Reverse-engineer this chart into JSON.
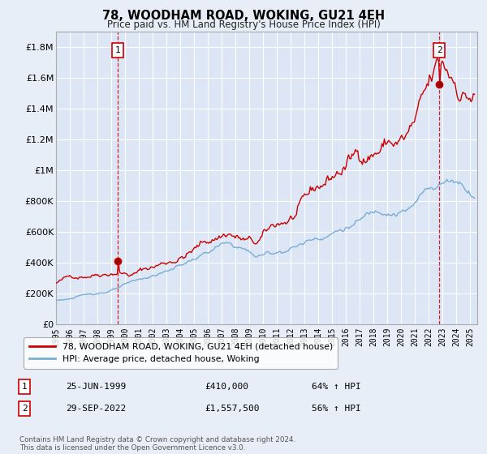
{
  "title": "78, WOODHAM ROAD, WOKING, GU21 4EH",
  "subtitle": "Price paid vs. HM Land Registry's House Price Index (HPI)",
  "background_color": "#e8eef7",
  "plot_bg_color": "#dce6f5",
  "ylim": [
    0,
    1900000
  ],
  "yticks": [
    0,
    200000,
    400000,
    600000,
    800000,
    1000000,
    1200000,
    1400000,
    1600000,
    1800000
  ],
  "ytick_labels": [
    "£0",
    "£200K",
    "£400K",
    "£600K",
    "£800K",
    "£1M",
    "£1.2M",
    "£1.4M",
    "£1.6M",
    "£1.8M"
  ],
  "marker1": {
    "year": 1999.48,
    "price": 410000,
    "label": "1",
    "date": "25-JUN-1999",
    "price_str": "£410,000",
    "pct": "64% ↑ HPI"
  },
  "marker2": {
    "year": 2022.75,
    "price": 1557500,
    "label": "2",
    "date": "29-SEP-2022",
    "price_str": "£1,557,500",
    "pct": "56% ↑ HPI"
  },
  "legend_red": "78, WOODHAM ROAD, WOKING, GU21 4EH (detached house)",
  "legend_blue": "HPI: Average price, detached house, Woking",
  "footnote": "Contains HM Land Registry data © Crown copyright and database right 2024.\nThis data is licensed under the Open Government Licence v3.0.",
  "red_color": "#cc0000",
  "blue_color": "#7aadd4",
  "red_ctrl_years": [
    1995,
    1997,
    1999.48,
    2000.5,
    2003,
    2005,
    2007.5,
    2008.5,
    2009.5,
    2011,
    2013,
    2015,
    2017,
    2019,
    2020.3,
    2021,
    2022.75,
    2023.5,
    2024.5,
    2025.3
  ],
  "red_ctrl_vals": [
    270000,
    330000,
    410000,
    390000,
    480000,
    590000,
    740000,
    680000,
    620000,
    730000,
    830000,
    980000,
    1130000,
    1270000,
    1280000,
    1350000,
    1557500,
    1500000,
    1450000,
    1440000
  ],
  "blue_ctrl_years": [
    1995,
    1997,
    1999,
    2001,
    2003,
    2005,
    2007,
    2008.5,
    2009.5,
    2011,
    2013,
    2015,
    2017,
    2019,
    2020.3,
    2021,
    2022,
    2023,
    2024,
    2025.3
  ],
  "blue_ctrl_vals": [
    155000,
    185000,
    225000,
    275000,
    330000,
    410000,
    490000,
    460000,
    410000,
    440000,
    510000,
    600000,
    680000,
    780000,
    800000,
    830000,
    950000,
    1000000,
    1030000,
    960000
  ],
  "noise_seed_red": 42,
  "noise_seed_blue": 123,
  "noise_scale_red": 0.018,
  "noise_scale_blue": 0.01
}
